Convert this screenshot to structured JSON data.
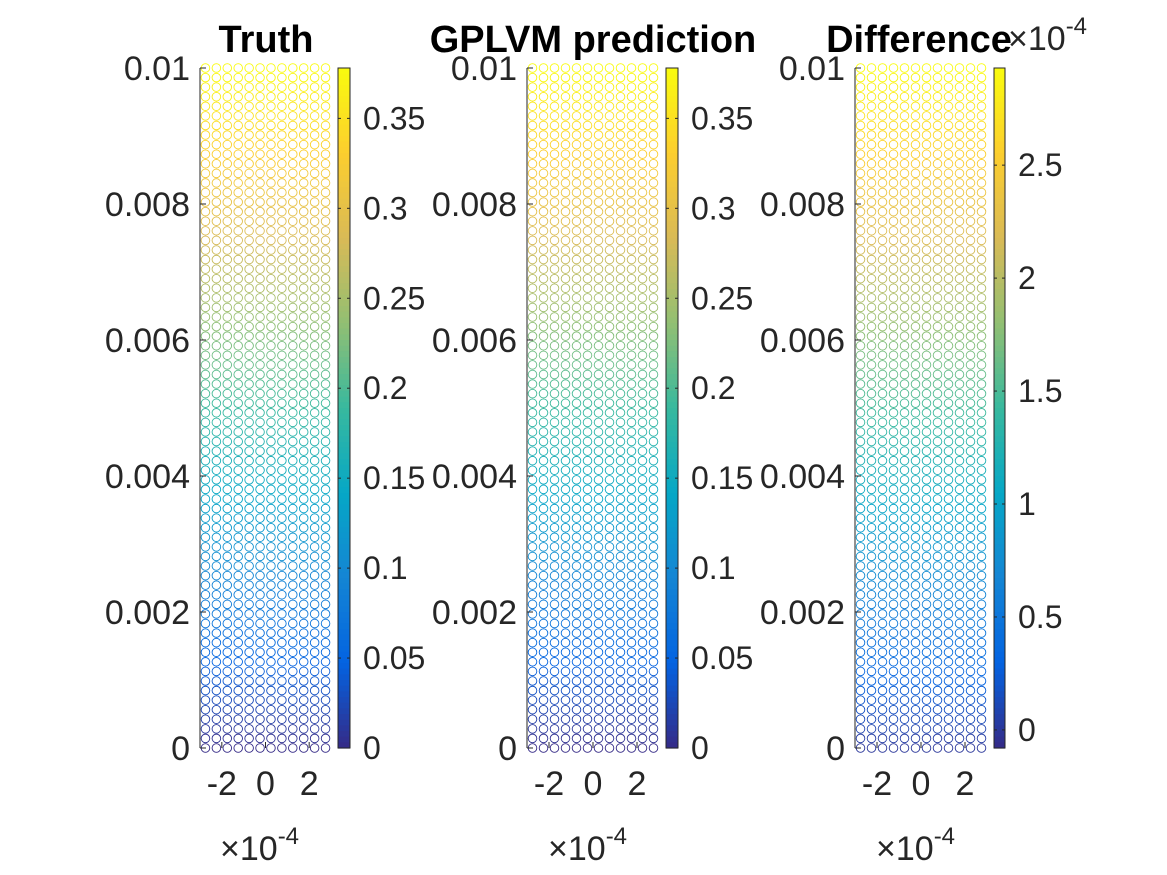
{
  "figure": {
    "type": "scatter-colormap-panels",
    "colormap": "parula",
    "axis_color": "#262626"
  },
  "chart_data": [
    {
      "type": "scatter",
      "title": "Truth",
      "xlabel": "",
      "ylabel": "",
      "xlim": [
        -0.0003,
        0.0003
      ],
      "ylim": [
        0,
        0.01
      ],
      "x_ticks": [
        -0.0002,
        0,
        0.0002
      ],
      "x_tick_labels": [
        "-2",
        "0",
        "2"
      ],
      "x_multiplier": "×10",
      "x_multiplier_exp": "-4",
      "y_ticks": [
        0,
        0.002,
        0.004,
        0.006,
        0.008,
        0.01
      ],
      "y_tick_labels": [
        "0",
        "0.002",
        "0.004",
        "0.006",
        "0.008",
        "0.01"
      ],
      "grid": {
        "columns": 12,
        "rows": 72,
        "x": [
          -0.000275,
          0.000275
        ],
        "y": [
          0,
          0.01
        ]
      },
      "color_value": {
        "model": "linear_in_y",
        "at_y_min": 0,
        "at_y_max": 0.378
      },
      "colorbar": {
        "range": [
          0,
          0.378
        ],
        "ticks": [
          0,
          0.05,
          0.1,
          0.15,
          0.2,
          0.25,
          0.3,
          0.35
        ],
        "tick_labels": [
          "0",
          "0.05",
          "0.1",
          "0.15",
          "0.2",
          "0.25",
          "0.3",
          "0.35"
        ],
        "multiplier": "",
        "multiplier_exp": ""
      }
    },
    {
      "type": "scatter",
      "title": "GPLVM prediction",
      "xlabel": "",
      "ylabel": "",
      "xlim": [
        -0.0003,
        0.0003
      ],
      "ylim": [
        0,
        0.01
      ],
      "x_ticks": [
        -0.0002,
        0,
        0.0002
      ],
      "x_tick_labels": [
        "-2",
        "0",
        "2"
      ],
      "x_multiplier": "×10",
      "x_multiplier_exp": "-4",
      "y_ticks": [
        0,
        0.002,
        0.004,
        0.006,
        0.008,
        0.01
      ],
      "y_tick_labels": [
        "0",
        "0.002",
        "0.004",
        "0.006",
        "0.008",
        "0.01"
      ],
      "grid": {
        "columns": 12,
        "rows": 72,
        "x": [
          -0.000275,
          0.000275
        ],
        "y": [
          0,
          0.01
        ]
      },
      "color_value": {
        "model": "linear_in_y",
        "at_y_min": 0,
        "at_y_max": 0.378
      },
      "colorbar": {
        "range": [
          0,
          0.378
        ],
        "ticks": [
          0,
          0.05,
          0.1,
          0.15,
          0.2,
          0.25,
          0.3,
          0.35
        ],
        "tick_labels": [
          "0",
          "0.05",
          "0.1",
          "0.15",
          "0.2",
          "0.25",
          "0.3",
          "0.35"
        ],
        "multiplier": "",
        "multiplier_exp": ""
      }
    },
    {
      "type": "scatter",
      "title": "Difference",
      "xlabel": "",
      "ylabel": "",
      "xlim": [
        -0.0003,
        0.0003
      ],
      "ylim": [
        0,
        0.01
      ],
      "x_ticks": [
        -0.0002,
        0,
        0.0002
      ],
      "x_tick_labels": [
        "-2",
        "0",
        "2"
      ],
      "x_multiplier": "×10",
      "x_multiplier_exp": "-4",
      "y_ticks": [
        0,
        0.002,
        0.004,
        0.006,
        0.008,
        0.01
      ],
      "y_tick_labels": [
        "0",
        "0.002",
        "0.004",
        "0.006",
        "0.008",
        "0.01"
      ],
      "grid": {
        "columns": 12,
        "rows": 72,
        "x": [
          -0.000275,
          0.000275
        ],
        "y": [
          0,
          0.01
        ]
      },
      "color_value": {
        "model": "linear_in_y",
        "at_y_min": 0,
        "at_y_max": 0.000293
      },
      "colorbar": {
        "range": [
          -8e-06,
          0.000293
        ],
        "ticks": [
          0,
          5e-05,
          0.0001,
          0.00015,
          0.0002,
          0.00025
        ],
        "tick_labels": [
          "0",
          "0.5",
          "1",
          "1.5",
          "2",
          "2.5"
        ],
        "multiplier": "×10",
        "multiplier_exp": "-4"
      }
    }
  ]
}
